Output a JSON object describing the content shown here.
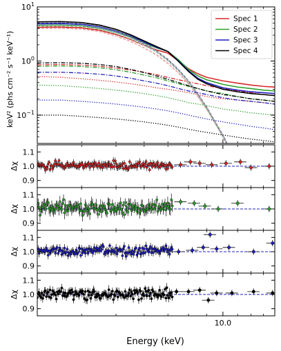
{
  "chart_data": [
    {
      "type": "line",
      "panel": "spectrum",
      "ylabel": "keV² (phs cm⁻² s⁻¹ keV⁻¹)",
      "yscale": "log",
      "xscale": "log",
      "xlim": [
        3.0,
        14.0
      ],
      "ylim": [
        0.03,
        10
      ],
      "yticks": [
        {
          "value": 10,
          "label": "10",
          "sup": "1"
        },
        {
          "value": 1,
          "label": "10",
          "sup": "0"
        },
        {
          "value": 0.1,
          "label": "10",
          "sup": "−1"
        }
      ],
      "legend_position": "top-right",
      "series": [
        {
          "name": "Spec 1",
          "color": "#d62728",
          "x": [
            3.0,
            3.5,
            4.0,
            4.5,
            5.0,
            5.5,
            6.0,
            6.5,
            7.0,
            7.5,
            8.0,
            8.5,
            9.0,
            10.0,
            11.0,
            12.0,
            13.0,
            14.0
          ],
          "total": [
            4.2,
            4.25,
            4.1,
            3.7,
            3.1,
            2.5,
            1.95,
            1.6,
            1.4,
            1.0,
            0.72,
            0.58,
            0.5,
            0.43,
            0.39,
            0.36,
            0.34,
            0.33
          ],
          "disk": [
            4.0,
            4.05,
            3.9,
            3.5,
            2.9,
            2.3,
            1.75,
            1.3,
            0.9,
            0.6,
            0.38,
            0.22,
            0.13,
            0.04,
            0.012,
            0.004,
            0.001,
            0.0003
          ],
          "comp": [
            0.85,
            0.86,
            0.84,
            0.8,
            0.74,
            0.68,
            0.62,
            0.56,
            0.5,
            0.45,
            0.41,
            0.38,
            0.35,
            0.31,
            0.28,
            0.26,
            0.24,
            0.23
          ],
          "refl": [
            0.52,
            0.5,
            0.47,
            0.44,
            0.41,
            0.38,
            0.35,
            0.32,
            0.3,
            0.28,
            0.26,
            0.24,
            0.22,
            0.2,
            0.19,
            0.18,
            0.17,
            0.16
          ]
        },
        {
          "name": "Spec 2",
          "color": "#2ca02c",
          "x": [
            3.0,
            3.5,
            4.0,
            4.5,
            5.0,
            5.5,
            6.0,
            6.5,
            7.0,
            7.5,
            8.0,
            8.5,
            9.0,
            10.0,
            11.0,
            12.0,
            13.0,
            14.0
          ],
          "total": [
            4.6,
            4.65,
            4.5,
            4.05,
            3.4,
            2.75,
            2.15,
            1.75,
            1.5,
            1.05,
            0.7,
            0.53,
            0.45,
            0.37,
            0.33,
            0.31,
            0.29,
            0.28
          ],
          "disk": [
            4.4,
            4.45,
            4.3,
            3.85,
            3.2,
            2.55,
            1.95,
            1.45,
            1.0,
            0.65,
            0.4,
            0.23,
            0.13,
            0.04,
            0.012,
            0.004,
            0.001,
            0.0003
          ],
          "comp": [
            0.8,
            0.81,
            0.79,
            0.75,
            0.69,
            0.62,
            0.55,
            0.49,
            0.43,
            0.38,
            0.34,
            0.31,
            0.28,
            0.25,
            0.22,
            0.2,
            0.19,
            0.18
          ],
          "refl": [
            0.36,
            0.35,
            0.33,
            0.31,
            0.29,
            0.27,
            0.25,
            0.23,
            0.21,
            0.19,
            0.17,
            0.16,
            0.15,
            0.13,
            0.12,
            0.11,
            0.105,
            0.1
          ]
        },
        {
          "name": "Spec 3",
          "color": "#1f1fbf",
          "x": [
            3.0,
            3.5,
            4.0,
            4.5,
            5.0,
            5.5,
            6.0,
            6.5,
            7.0,
            7.5,
            8.0,
            8.5,
            9.0,
            10.0,
            11.0,
            12.0,
            13.0,
            14.0
          ],
          "total": [
            4.9,
            4.95,
            4.8,
            4.3,
            3.6,
            2.9,
            2.25,
            1.8,
            1.5,
            1.0,
            0.66,
            0.48,
            0.4,
            0.32,
            0.29,
            0.27,
            0.26,
            0.25
          ],
          "disk": [
            4.7,
            4.75,
            4.6,
            4.1,
            3.4,
            2.7,
            2.05,
            1.5,
            1.05,
            0.68,
            0.42,
            0.24,
            0.14,
            0.042,
            0.012,
            0.004,
            0.001,
            0.0003
          ],
          "comp": [
            0.62,
            0.62,
            0.6,
            0.57,
            0.53,
            0.48,
            0.43,
            0.39,
            0.35,
            0.31,
            0.28,
            0.26,
            0.24,
            0.21,
            0.19,
            0.18,
            0.17,
            0.16
          ],
          "refl": [
            0.19,
            0.19,
            0.18,
            0.17,
            0.16,
            0.15,
            0.14,
            0.13,
            0.12,
            0.11,
            0.1,
            0.092,
            0.085,
            0.075,
            0.068,
            0.062,
            0.058,
            0.054
          ]
        },
        {
          "name": "Spec 4",
          "color": "#000000",
          "x": [
            3.0,
            3.5,
            4.0,
            4.5,
            5.0,
            5.5,
            6.0,
            6.5,
            7.0,
            7.5,
            8.0,
            8.5,
            9.0,
            10.0,
            11.0,
            12.0,
            13.0,
            14.0
          ],
          "total": [
            5.3,
            5.35,
            5.15,
            4.6,
            3.85,
            3.05,
            2.35,
            1.85,
            1.5,
            0.98,
            0.64,
            0.46,
            0.38,
            0.3,
            0.27,
            0.25,
            0.24,
            0.23
          ],
          "disk": [
            5.1,
            5.15,
            4.95,
            4.4,
            3.65,
            2.85,
            2.15,
            1.55,
            1.07,
            0.7,
            0.43,
            0.25,
            0.14,
            0.043,
            0.012,
            0.004,
            0.001,
            0.0003
          ],
          "comp": [
            0.92,
            0.93,
            0.91,
            0.86,
            0.79,
            0.7,
            0.61,
            0.53,
            0.46,
            0.4,
            0.35,
            0.31,
            0.28,
            0.24,
            0.22,
            0.2,
            0.19,
            0.18
          ],
          "refl": [
            0.1,
            0.1,
            0.095,
            0.09,
            0.085,
            0.08,
            0.075,
            0.07,
            0.065,
            0.06,
            0.055,
            0.051,
            0.048,
            0.043,
            0.039,
            0.036,
            0.034,
            0.032
          ]
        }
      ]
    },
    {
      "type": "scatter",
      "panel": "residuals",
      "ylabel": "Δχ",
      "xlabel": "Energy (keV)",
      "xticks": [
        {
          "value": 10.0,
          "label": "10.0"
        }
      ],
      "ylim": [
        0.85,
        1.15
      ],
      "yticks": [
        {
          "value": 0.9,
          "label": "0.9"
        },
        {
          "value": 1.0,
          "label": "1.0"
        },
        {
          "value": 1.1,
          "label": "1.1"
        }
      ],
      "panels": [
        {
          "name": "Spec 1",
          "color": "#d62728",
          "seed": 11,
          "scatter": 0.018,
          "sparse": [
            {
              "x": 7.6,
              "y": 1.01
            },
            {
              "x": 8.1,
              "y": 1.03
            },
            {
              "x": 8.6,
              "y": 1.02
            },
            {
              "x": 9.3,
              "y": 1.01
            },
            {
              "x": 10.2,
              "y": 1.02
            },
            {
              "x": 11.2,
              "y": 1.03
            },
            {
              "x": 12.0,
              "y": 0.99
            },
            {
              "x": 13.5,
              "y": 1.0
            }
          ]
        },
        {
          "name": "Spec 2",
          "color": "#2ca02c",
          "seed": 23,
          "scatter": 0.03,
          "sparse": [
            {
              "x": 7.6,
              "y": 1.05
            },
            {
              "x": 8.3,
              "y": 1.04
            },
            {
              "x": 8.9,
              "y": 1.02
            },
            {
              "x": 9.7,
              "y": 1.0
            },
            {
              "x": 11.0,
              "y": 1.04
            },
            {
              "x": 13.5,
              "y": 1.0
            }
          ]
        },
        {
          "name": "Spec 3",
          "color": "#1f1fbf",
          "seed": 37,
          "scatter": 0.02,
          "sparse": [
            {
              "x": 7.5,
              "y": 1.0
            },
            {
              "x": 8.2,
              "y": 1.01
            },
            {
              "x": 8.8,
              "y": 1.03
            },
            {
              "x": 9.2,
              "y": 1.12
            },
            {
              "x": 9.6,
              "y": 1.02
            },
            {
              "x": 10.4,
              "y": 1.03
            },
            {
              "x": 12.2,
              "y": 1.0
            },
            {
              "x": 13.8,
              "y": 1.06
            }
          ]
        },
        {
          "name": "Spec 4",
          "color": "#000000",
          "seed": 51,
          "scatter": 0.022,
          "sparse": [
            {
              "x": 7.4,
              "y": 1.02
            },
            {
              "x": 8.0,
              "y": 1.02
            },
            {
              "x": 8.6,
              "y": 1.03
            },
            {
              "x": 9.1,
              "y": 0.96
            },
            {
              "x": 9.6,
              "y": 1.01
            },
            {
              "x": 10.6,
              "y": 1.01
            },
            {
              "x": 12.2,
              "y": 1.02
            },
            {
              "x": 13.8,
              "y": 1.01
            }
          ]
        }
      ]
    }
  ]
}
